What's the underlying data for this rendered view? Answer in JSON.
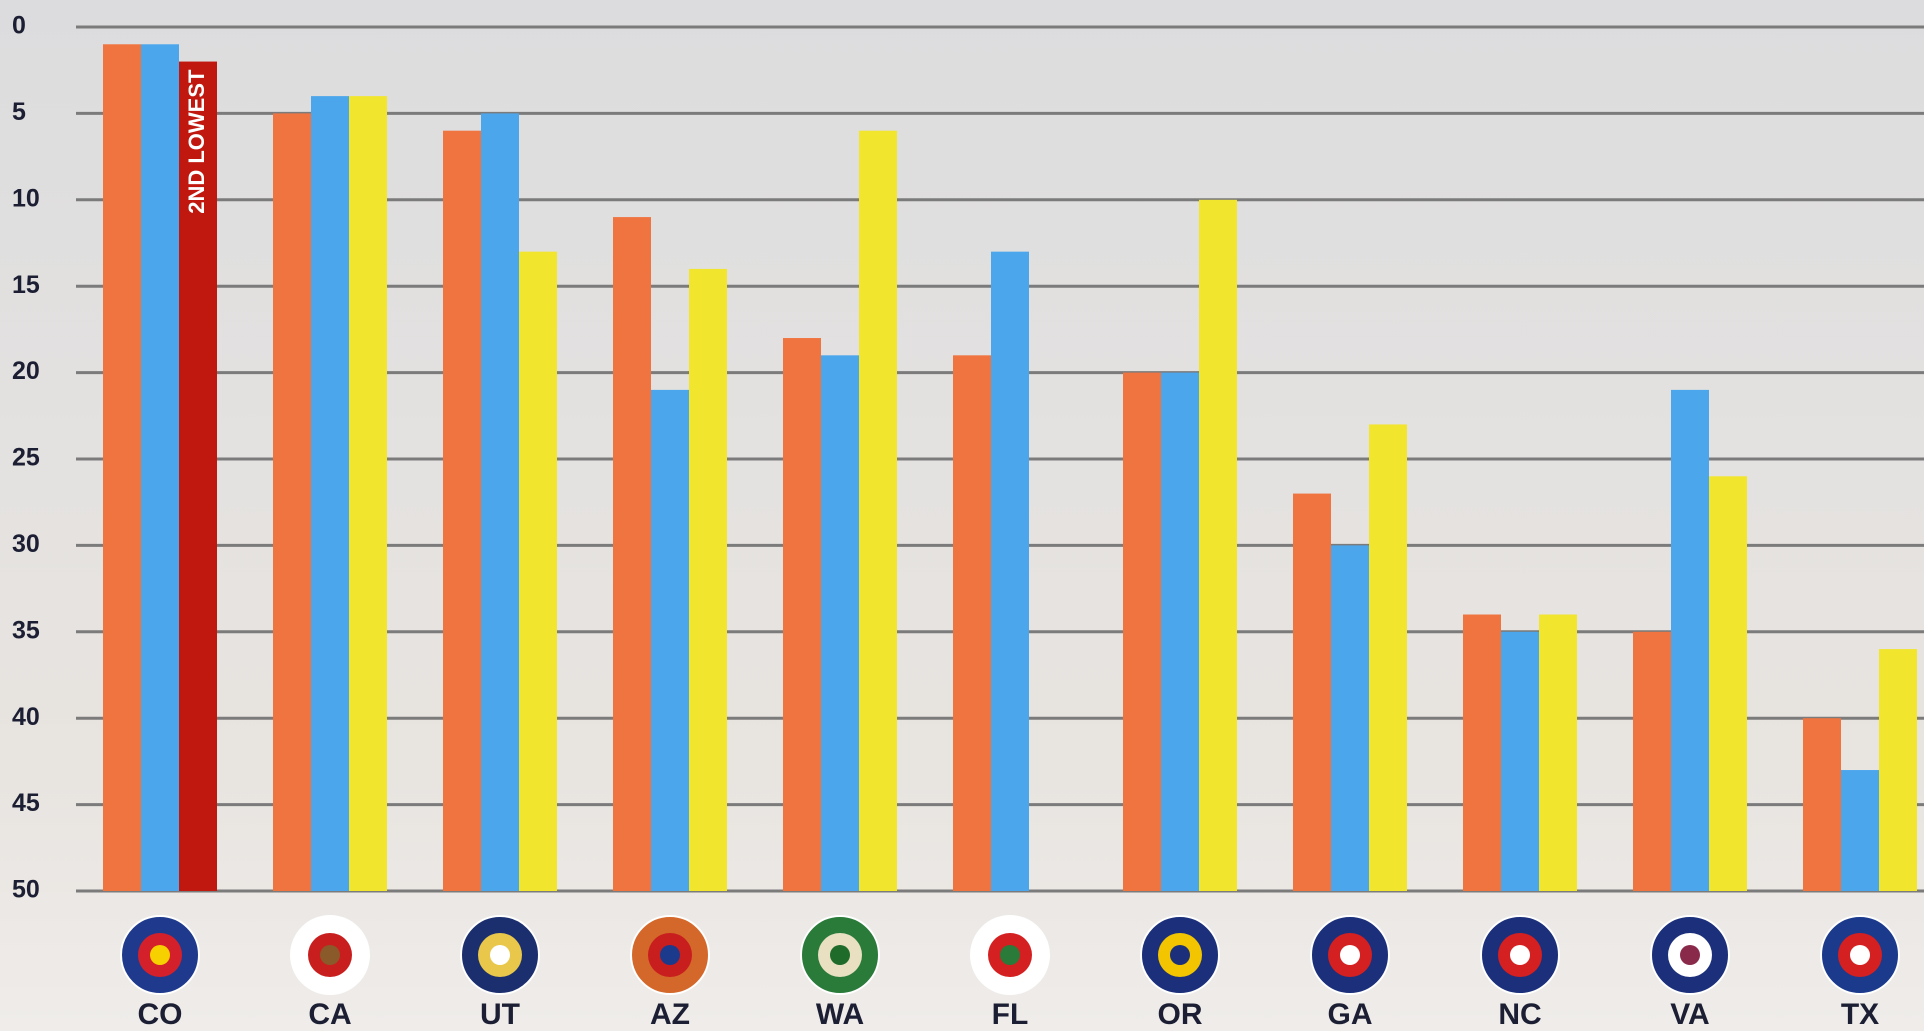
{
  "chart_data": {
    "type": "bar",
    "categories": [
      "CO",
      "CA",
      "UT",
      "AZ",
      "WA",
      "FL",
      "OR",
      "GA",
      "NC",
      "VA",
      "TX"
    ],
    "series": [
      {
        "color": "#f07440",
        "values": [
          1,
          5,
          6,
          11,
          18,
          19,
          20,
          27,
          34,
          35,
          40
        ]
      },
      {
        "color": "#4ba6ec",
        "values": [
          1,
          4,
          5,
          21,
          19,
          13,
          20,
          30,
          35,
          21,
          43
        ]
      },
      {
        "color": "#f2e52e",
        "colors": [
          "#c0170f",
          "#f2e52e",
          "#f2e52e",
          "#f2e52e",
          "#f2e52e",
          "#f2e52e",
          "#f2e52e",
          "#f2e52e",
          "#f2e52e",
          "#f2e52e",
          "#f2e52e"
        ],
        "values": [
          2,
          4,
          13,
          14,
          6,
          null,
          10,
          23,
          34,
          26,
          36
        ]
      }
    ],
    "annotation": "2ND LOWEST",
    "ylim": [
      0,
      50
    ],
    "y_inverted": true,
    "yticks": [
      0,
      5,
      10,
      15,
      20,
      25,
      30,
      35,
      40,
      45,
      50
    ],
    "grid": true
  }
}
